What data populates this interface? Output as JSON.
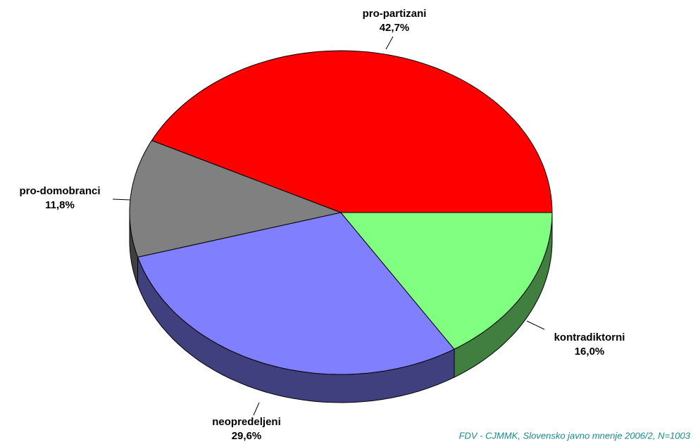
{
  "chart_data": {
    "type": "pie3d",
    "categories": [
      "pro-partizani",
      "pro-domobranci",
      "neopredeljeni",
      "kontradiktorni"
    ],
    "values": [
      42.7,
      11.8,
      29.6,
      16.0
    ],
    "value_labels": [
      "42,7%",
      "11,8%",
      "29,6%",
      "16,0%"
    ],
    "colors": [
      "#ff0000",
      "#808080",
      "#8080ff",
      "#80ff80"
    ],
    "side_colors": [
      "#800000",
      "#404040",
      "#40407f",
      "#407f40"
    ],
    "source": "FDV - CJMMK, Slovensko javno mnenje 2006/2, N=1003"
  }
}
